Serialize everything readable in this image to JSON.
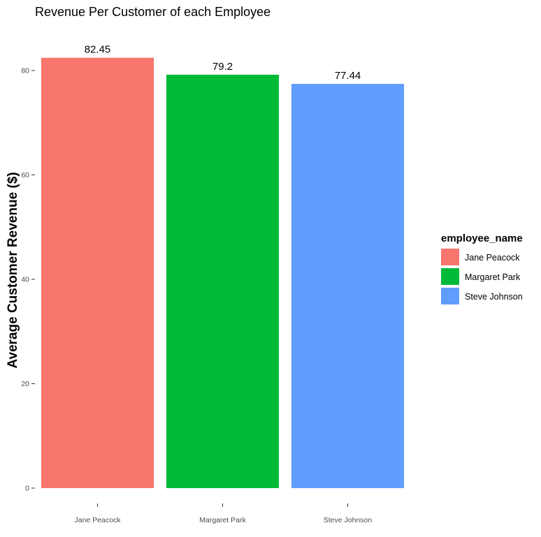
{
  "chart_data": {
    "type": "bar",
    "title": "Revenue Per Customer of each Employee",
    "xlabel": "",
    "ylabel": "Average Customer Revenue ($)",
    "categories": [
      "Jane Peacock",
      "Margaret Park",
      "Steve Johnson"
    ],
    "values": [
      82.45,
      79.2,
      77.44
    ],
    "data_labels": [
      "82.45",
      "79.2",
      "77.44"
    ],
    "colors": [
      "#F8766D",
      "#00BA38",
      "#619CFF"
    ],
    "ylim": [
      0,
      86.6
    ],
    "yticks": [
      0,
      20,
      40,
      60,
      80
    ],
    "grid": false,
    "legend": {
      "title": "employee_name",
      "placement": "right",
      "entries": [
        "Jane Peacock",
        "Margaret Park",
        "Steve Johnson"
      ]
    }
  }
}
